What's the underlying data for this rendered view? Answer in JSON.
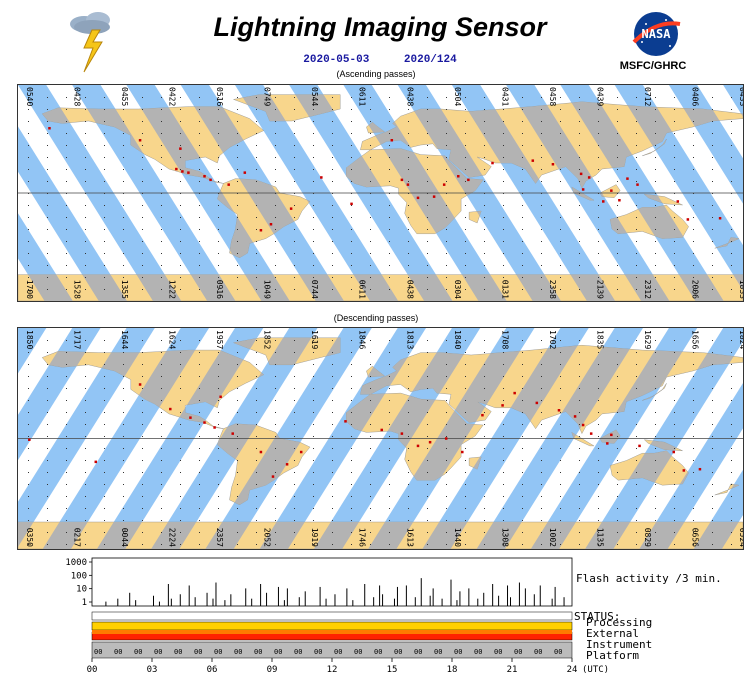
{
  "header": {
    "title": "Lightning Imaging Sensor",
    "date": "2020-05-03",
    "day_of_year": "2020/124",
    "org_label": "MSFC/GHRC",
    "logo_text": "NASA"
  },
  "ascending": {
    "caption": "(Ascending passes)",
    "top_times": [
      "0540",
      "0428",
      "0455",
      "0422",
      "0516",
      "0749",
      "0544",
      "0611",
      "0438",
      "0504",
      "0431",
      "0458",
      "0439",
      "0712",
      "0406",
      "0433"
    ],
    "bottom_times": [
      "1700",
      "1528",
      "1355",
      "1222",
      "0916",
      "1049",
      "0744",
      "0611",
      "0438",
      "0304",
      "0131",
      "2358",
      "2139",
      "2312",
      "2006",
      "1833"
    ]
  },
  "descending": {
    "caption": "(Descending passes)",
    "top_times": [
      "1850",
      "1717",
      "1644",
      "1624",
      "1957",
      "1852",
      "1619",
      "1846",
      "1813",
      "1840",
      "1708",
      "1702",
      "1835",
      "1629",
      "1656",
      "1824"
    ],
    "bottom_times": [
      "0350",
      "0217",
      "0044",
      "2224",
      "2357",
      "2052",
      "1919",
      "1746",
      "1613",
      "1440",
      "1308",
      "1002",
      "1135",
      "0829",
      "0656",
      "0524"
    ]
  },
  "timeline": {
    "y_ticks": [
      "1000",
      "100",
      "10",
      "1"
    ],
    "x_ticks": [
      "00",
      "03",
      "06",
      "09",
      "12",
      "15",
      "18",
      "21",
      "24"
    ],
    "x_unit": "(UTC)",
    "flash_label": "Flash activity /3 min.",
    "status_title": "STATUS:",
    "status_rows": [
      "Processing",
      "External",
      "Instrument",
      "Platform"
    ],
    "platform_code": "00",
    "flash_counts_log10": [
      0,
      0,
      0,
      0,
      0.3,
      0,
      0,
      0,
      0.5,
      0,
      0,
      0,
      0.9,
      0,
      0.4,
      0,
      0,
      0,
      0,
      0,
      0.7,
      0,
      0.3,
      0,
      0,
      1.5,
      0.5,
      0,
      0,
      0.8,
      0,
      0,
      1.4,
      0,
      0.6,
      0,
      0,
      0,
      0.9,
      0,
      0.5,
      1.6,
      0,
      0,
      0.4,
      0,
      0.8,
      0,
      0,
      0,
      0,
      1.2,
      0,
      0.5,
      0,
      0,
      1.5,
      0,
      0.9,
      0,
      0,
      0,
      1.3,
      0,
      0.4,
      1.2,
      0,
      0,
      0,
      0.6,
      0,
      1.0,
      0,
      0,
      0,
      0,
      1.3,
      0,
      0.5,
      0,
      0,
      0.8,
      0,
      0,
      0,
      1.2,
      0,
      0.4,
      0,
      0,
      0,
      1.5,
      0,
      0,
      0.6,
      0,
      1.4,
      0.8,
      0,
      0,
      0,
      0.5,
      1.3,
      0,
      0,
      1.4,
      0,
      0,
      0.6,
      0,
      1.9,
      0,
      0,
      0.7,
      1.2,
      0,
      0,
      0.5,
      0,
      0,
      1.8,
      0,
      0.4,
      1.0,
      0,
      0,
      1.2,
      0,
      0,
      0.5,
      0,
      0.9,
      0,
      0,
      1.5,
      0,
      0.7,
      0,
      0,
      1.4,
      0.6,
      0,
      0,
      1.6,
      0,
      1.2,
      0,
      0,
      0.8,
      0,
      1.4,
      0,
      0,
      0,
      0.5,
      1.3,
      0,
      0,
      0.6,
      0
    ],
    "status_colors": {
      "processing": "#ffffff",
      "external": "#ffd000",
      "instrument": "#ff2200",
      "platform": "#bbbbbb"
    }
  },
  "colors": {
    "swath": "#92c5f5",
    "land": "#f8d68c",
    "overlap": "#b3b3b3",
    "flash": "#cc0000"
  }
}
